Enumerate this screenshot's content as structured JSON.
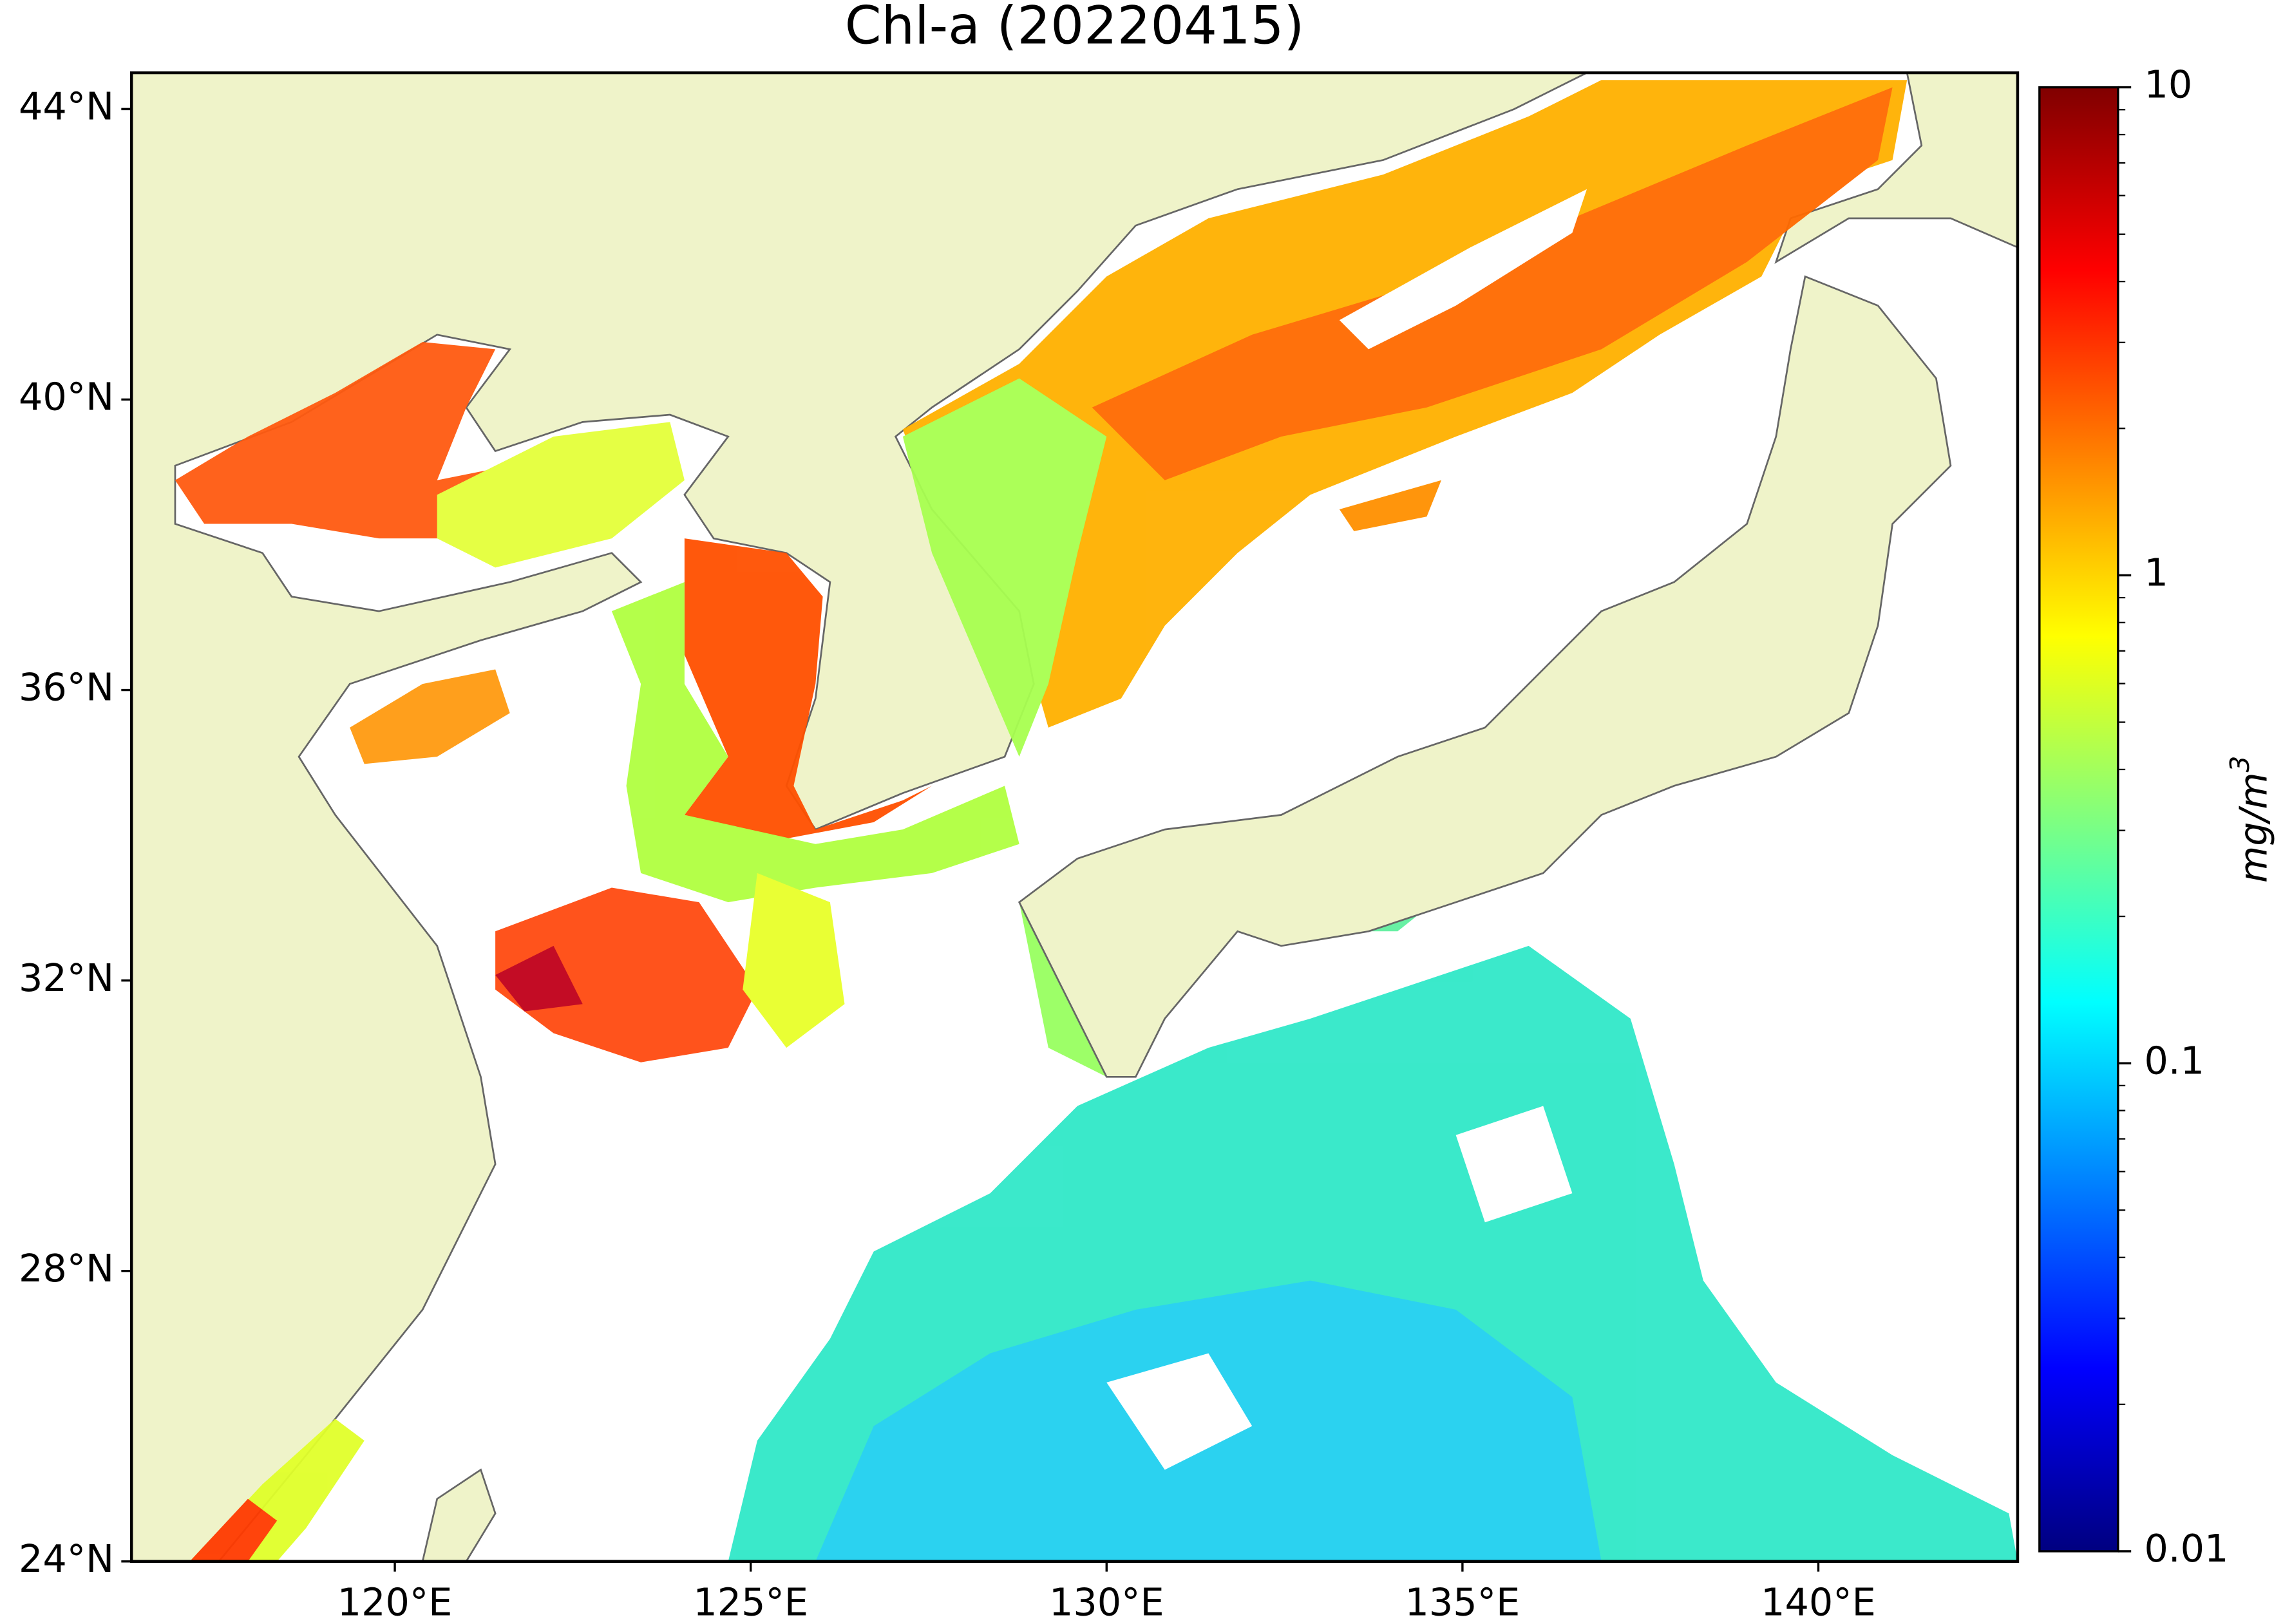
{
  "title": "Chl-a (20220415)",
  "map": {
    "lon_lim": [
      116.3,
      142.8
    ],
    "lat_lim": [
      24,
      44.5
    ],
    "lon_ticks": [
      {
        "value": 120,
        "label": "120°E"
      },
      {
        "value": 125,
        "label": "125°E"
      },
      {
        "value": 130,
        "label": "130°E"
      },
      {
        "value": 135,
        "label": "135°E"
      },
      {
        "value": 140,
        "label": "140°E"
      }
    ],
    "lat_ticks": [
      {
        "value": 24,
        "label": "24°N"
      },
      {
        "value": 28,
        "label": "28°N"
      },
      {
        "value": 32,
        "label": "32°N"
      },
      {
        "value": 36,
        "label": "36°N"
      },
      {
        "value": 40,
        "label": "40°N"
      },
      {
        "value": 44,
        "label": "44°N"
      }
    ]
  },
  "colorbar": {
    "label": "mg/m",
    "label_superscript": "3",
    "scale": "log",
    "colormap": "jet",
    "lim": [
      0.01,
      10
    ],
    "ticks": [
      0.01,
      0.1,
      1,
      10
    ]
  }
}
